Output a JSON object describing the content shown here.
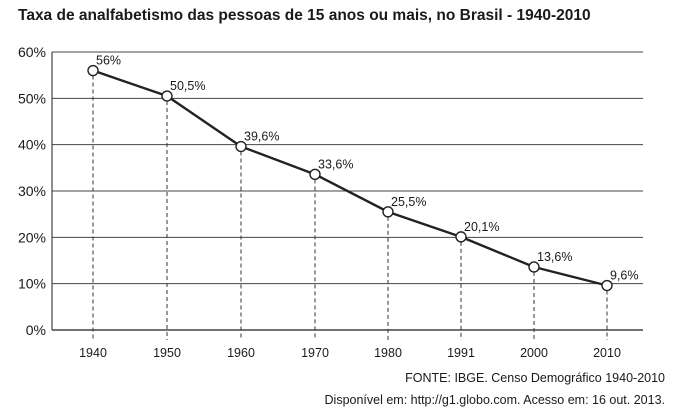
{
  "chart_data": {
    "type": "line",
    "title": "Taxa de analfabetismo das pessoas de 15 anos ou mais, no Brasil - 1940-2010",
    "categories": [
      "1940",
      "1950",
      "1960",
      "1970",
      "1980",
      "1991",
      "2000",
      "2010"
    ],
    "series": [
      {
        "values": [
          56,
          50.5,
          39.6,
          33.6,
          25.5,
          20.1,
          13.6,
          9.6
        ]
      }
    ],
    "data_labels": [
      "56%",
      "50,5%",
      "39,6%",
      "33,6%",
      "25,5%",
      "20,1%",
      "13,6%",
      "9,6%"
    ],
    "yticks": [
      0,
      10,
      20,
      30,
      40,
      50,
      60
    ],
    "ytick_labels": [
      "0%",
      "10%",
      "20%",
      "30%",
      "40%",
      "50%",
      "60%"
    ],
    "ylim": [
      0,
      60
    ],
    "xlabel": "",
    "ylabel": "",
    "grid": "horizontal",
    "drop_lines": "dashed",
    "colors": {
      "line": "#222222",
      "grid": "#444444",
      "marker_fill": "#ffffff"
    }
  },
  "source": {
    "line1": "FONTE: IBGE. Censo Demográfico 1940-2010",
    "line2": "Disponível em: http://g1.globo.com. Acesso em: 16 out. 2013."
  }
}
